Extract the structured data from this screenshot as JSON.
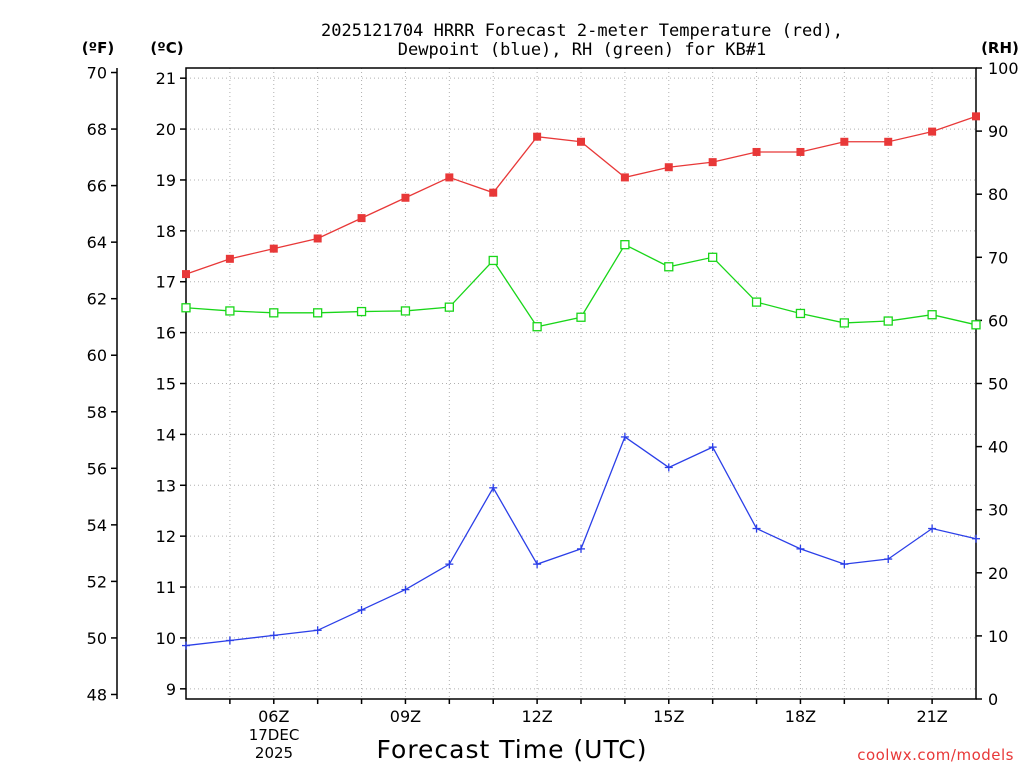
{
  "chart_data": {
    "type": "line",
    "title_line1": "2025121704 HRRR Forecast 2-meter Temperature (red),",
    "title_line2": "Dewpoint (blue), RH (green) for KB#1",
    "xlabel": "Forecast Time (UTC)",
    "date_label_day": "17DEC",
    "date_label_year": "2025",
    "watermark": "coolwx.com/models",
    "unit_f": "(ºF)",
    "unit_c": "(ºC)",
    "unit_rh": "(RH)",
    "x_range": [
      4,
      22
    ],
    "x": [
      4,
      5,
      6,
      7,
      8,
      9,
      10,
      11,
      12,
      13,
      14,
      15,
      16,
      17,
      18,
      19,
      20,
      21,
      22
    ],
    "x_ticks": [
      {
        "hour": 6,
        "label": "06Z"
      },
      {
        "hour": 9,
        "label": "09Z"
      },
      {
        "hour": 12,
        "label": "12Z"
      },
      {
        "hour": 15,
        "label": "15Z"
      },
      {
        "hour": 18,
        "label": "18Z"
      },
      {
        "hour": 21,
        "label": "21Z"
      }
    ],
    "c_axis": {
      "range": [
        8.8,
        21.2
      ],
      "ticks": [
        "9",
        "10",
        "11",
        "12",
        "13",
        "14",
        "15",
        "16",
        "17",
        "18",
        "19",
        "20",
        "21"
      ]
    },
    "f_axis": {
      "range": [
        47.84,
        70.16
      ],
      "ticks": [
        "48",
        "50",
        "52",
        "54",
        "56",
        "58",
        "60",
        "62",
        "64",
        "66",
        "68",
        "70"
      ]
    },
    "rh_axis": {
      "range": [
        0,
        100
      ],
      "ticks": [
        "0",
        "10",
        "20",
        "30",
        "40",
        "50",
        "60",
        "70",
        "80",
        "90",
        "100"
      ]
    },
    "series": [
      {
        "name": "Temperature",
        "axis": "c",
        "color": "#e83838",
        "marker": "square-filled",
        "values": [
          17.15,
          17.45,
          17.65,
          17.85,
          18.25,
          18.65,
          19.05,
          18.75,
          19.85,
          19.75,
          19.05,
          19.25,
          19.35,
          19.55,
          19.55,
          19.75,
          19.75,
          19.95,
          20.25
        ]
      },
      {
        "name": "Dewpoint",
        "axis": "c",
        "color": "#2b3fe8",
        "marker": "plus",
        "values": [
          9.85,
          9.95,
          10.05,
          10.15,
          10.55,
          10.95,
          11.45,
          12.95,
          11.45,
          11.75,
          13.95,
          13.35,
          13.75,
          12.15,
          11.75,
          11.45,
          11.55,
          12.15,
          11.95
        ]
      },
      {
        "name": "RH",
        "axis": "rh",
        "color": "#19d619",
        "marker": "square-open",
        "values": [
          62,
          61.5,
          61.2,
          61.2,
          61.4,
          61.5,
          62.1,
          69.5,
          59,
          60.5,
          72,
          68.5,
          70,
          62.9,
          61.1,
          59.6,
          59.9,
          60.9,
          59.3
        ]
      }
    ]
  }
}
